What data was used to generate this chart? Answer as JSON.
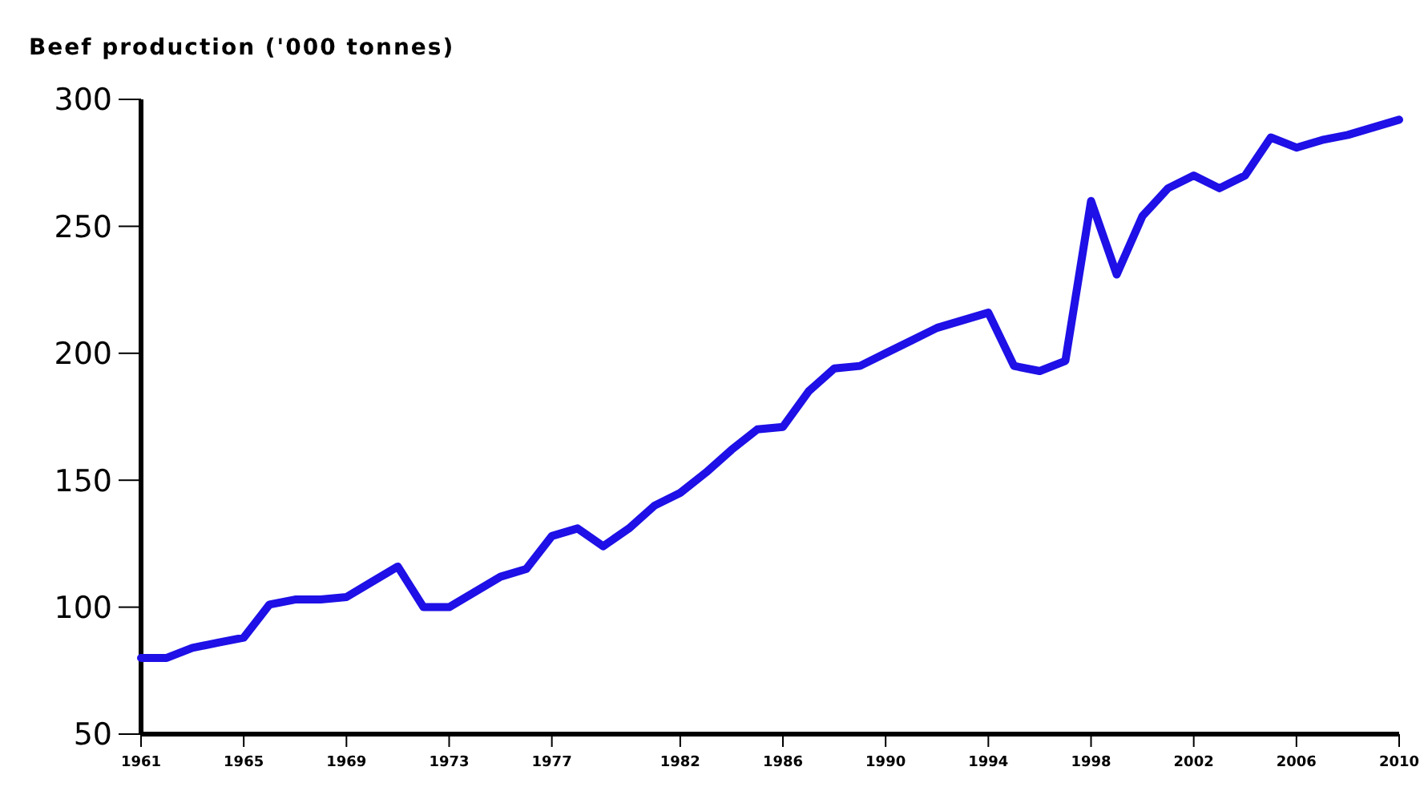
{
  "chart_data": {
    "type": "line",
    "title": "Beef production ('000 tonnes)",
    "x": [
      1961,
      1962,
      1963,
      1964,
      1965,
      1966,
      1967,
      1968,
      1969,
      1970,
      1971,
      1972,
      1973,
      1974,
      1975,
      1976,
      1977,
      1978,
      1979,
      1980,
      1981,
      1982,
      1983,
      1984,
      1985,
      1986,
      1987,
      1988,
      1989,
      1990,
      1991,
      1992,
      1993,
      1994,
      1995,
      1996,
      1997,
      1998,
      1999,
      2000,
      2001,
      2002,
      2003,
      2004,
      2005,
      2006,
      2007,
      2008,
      2009,
      2010
    ],
    "series": [
      {
        "color": "#1e10e6",
        "values": [
          80,
          80,
          84,
          86,
          88,
          101,
          103,
          103,
          104,
          110,
          116,
          100,
          100,
          106,
          112,
          115,
          128,
          131,
          124,
          131,
          140,
          145,
          153,
          162,
          170,
          171,
          185,
          194,
          195,
          200,
          205,
          210,
          213,
          216,
          195,
          193,
          197,
          260,
          231,
          254,
          265,
          270,
          265,
          270,
          285,
          281,
          284,
          286,
          289,
          292
        ]
      }
    ],
    "xlim": [
      1961,
      2010
    ],
    "xticks": [
      1961,
      {
        "value": 1965,
        "label": "1965"
      },
      {
        "value": 1969,
        "label": "1969"
      },
      {
        "value": 1973,
        "label": "1973"
      },
      {
        "value": 1977,
        "label": "1977"
      },
      1982,
      1986,
      1990,
      1994,
      1998,
      2002,
      2006,
      2010
    ],
    "ylim": [
      50,
      300
    ],
    "yticks": [
      50,
      100,
      150,
      200,
      250,
      300
    ],
    "grid": false,
    "line_style": "solid"
  }
}
